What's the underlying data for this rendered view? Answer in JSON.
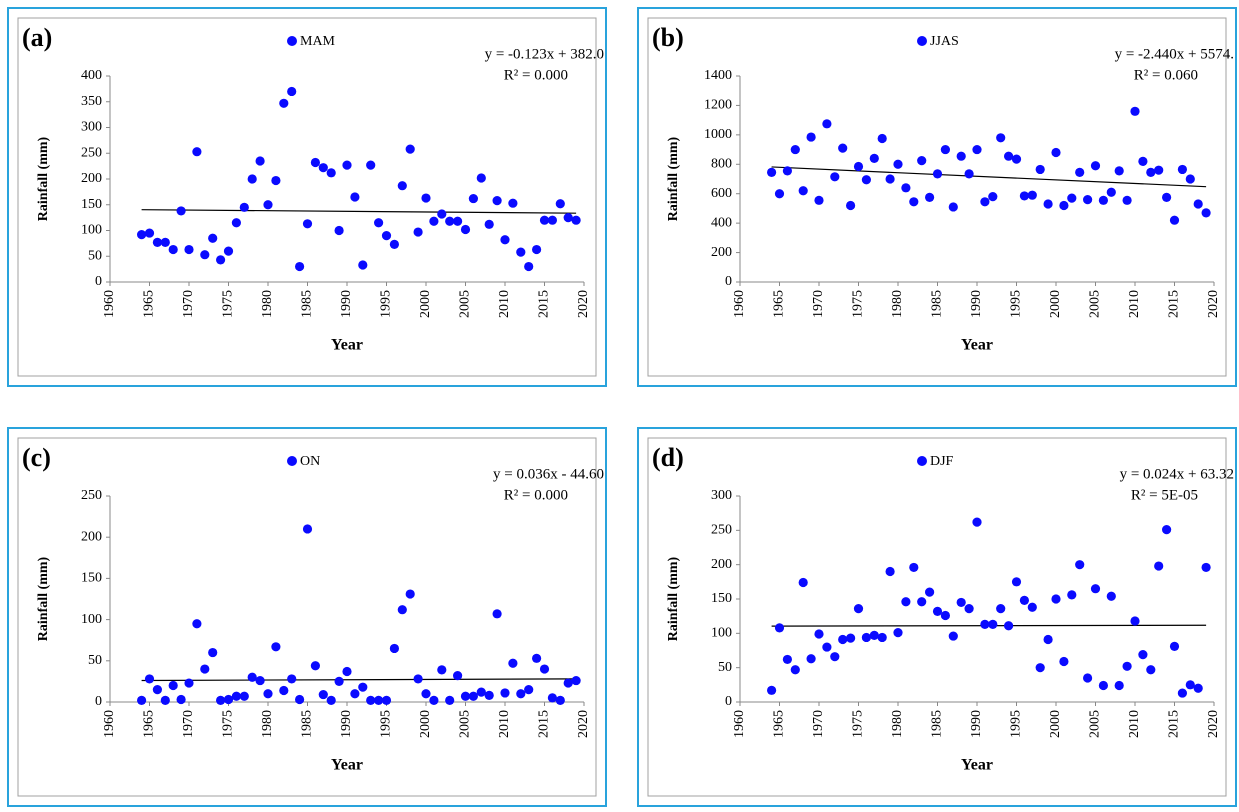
{
  "chart_data": [
    {
      "type": "scatter",
      "panel_label": "(a)",
      "x_label": "Year",
      "y_label": "Rainfall (mm)",
      "x": [
        1964,
        1965,
        1966,
        1967,
        1968,
        1969,
        1970,
        1971,
        1972,
        1973,
        1974,
        1975,
        1976,
        1977,
        1978,
        1979,
        1980,
        1981,
        1982,
        1983,
        1984,
        1985,
        1986,
        1987,
        1988,
        1989,
        1990,
        1991,
        1992,
        1993,
        1994,
        1995,
        1996,
        1997,
        1998,
        1999,
        2000,
        2001,
        2002,
        2003,
        2004,
        2005,
        2006,
        2007,
        2008,
        2009,
        2010,
        2011,
        2012,
        2013,
        2014,
        2015,
        2016,
        2017,
        2018,
        2019
      ],
      "series": [
        {
          "name": "MAM",
          "color": "#0a0aff",
          "values": [
            92,
            95,
            77,
            77,
            63,
            138,
            63,
            253,
            53,
            85,
            43,
            60,
            115,
            145,
            200,
            235,
            150,
            197,
            347,
            370,
            30,
            113,
            232,
            222,
            212,
            100,
            227,
            165,
            33,
            227,
            115,
            90,
            73,
            187,
            258,
            97,
            163,
            118,
            132,
            118,
            118,
            102,
            162,
            202,
            112,
            158,
            82,
            153,
            58,
            30,
            63,
            120,
            120,
            152,
            125,
            120
          ]
        }
      ],
      "xlim": [
        1960,
        2020
      ],
      "xticks": [
        1960,
        1965,
        1970,
        1975,
        1980,
        1985,
        1990,
        1995,
        2000,
        2005,
        2010,
        2015,
        2020
      ],
      "ylim": [
        0,
        400
      ],
      "yticks": [
        0,
        50,
        100,
        150,
        200,
        250,
        300,
        350,
        400
      ],
      "trend": {
        "slope": -0.123,
        "intercept": 382.0,
        "color": "#000000",
        "equation": "y = -0.123x + 382.0",
        "r2": "R² = 0.000"
      }
    },
    {
      "type": "scatter",
      "panel_label": "(b)",
      "x_label": "Year",
      "y_label": "Rainfall (mm)",
      "x": [
        1964,
        1965,
        1966,
        1967,
        1968,
        1969,
        1970,
        1971,
        1972,
        1973,
        1974,
        1975,
        1976,
        1977,
        1978,
        1979,
        1980,
        1981,
        1982,
        1983,
        1984,
        1985,
        1986,
        1987,
        1988,
        1989,
        1990,
        1991,
        1992,
        1993,
        1994,
        1995,
        1996,
        1997,
        1998,
        1999,
        2000,
        2001,
        2002,
        2003,
        2004,
        2005,
        2006,
        2007,
        2008,
        2009,
        2010,
        2011,
        2012,
        2013,
        2014,
        2015,
        2016,
        2017,
        2018,
        2019
      ],
      "series": [
        {
          "name": "JJAS",
          "color": "#0a0aff",
          "values": [
            745,
            600,
            755,
            900,
            620,
            985,
            555,
            1075,
            715,
            910,
            520,
            785,
            695,
            840,
            975,
            700,
            800,
            640,
            545,
            825,
            575,
            735,
            900,
            510,
            855,
            735,
            900,
            545,
            580,
            980,
            855,
            835,
            585,
            590,
            765,
            530,
            880,
            520,
            570,
            745,
            560,
            790,
            555,
            610,
            755,
            555,
            1160,
            820,
            745,
            760,
            575,
            420,
            765,
            700,
            530,
            470
          ]
        }
      ],
      "xlim": [
        1960,
        2020
      ],
      "xticks": [
        1960,
        1965,
        1970,
        1975,
        1980,
        1985,
        1990,
        1995,
        2000,
        2005,
        2010,
        2015,
        2020
      ],
      "ylim": [
        0,
        1400
      ],
      "yticks": [
        0,
        200,
        400,
        600,
        800,
        1000,
        1200,
        1400
      ],
      "trend": {
        "slope": -2.44,
        "intercept": 5574,
        "color": "#000000",
        "equation": "y = -2.440x + 5574.",
        "r2": "R² = 0.060"
      }
    },
    {
      "type": "scatter",
      "panel_label": "(c)",
      "x_label": "Year",
      "y_label": "Rainfall (mm)",
      "x": [
        1964,
        1965,
        1966,
        1967,
        1968,
        1969,
        1970,
        1971,
        1972,
        1973,
        1974,
        1975,
        1976,
        1977,
        1978,
        1979,
        1980,
        1981,
        1982,
        1983,
        1984,
        1985,
        1986,
        1987,
        1988,
        1989,
        1990,
        1991,
        1992,
        1993,
        1994,
        1995,
        1996,
        1997,
        1998,
        1999,
        2000,
        2001,
        2002,
        2003,
        2004,
        2005,
        2006,
        2007,
        2008,
        2009,
        2010,
        2011,
        2012,
        2013,
        2014,
        2015,
        2016,
        2017,
        2018,
        2019
      ],
      "series": [
        {
          "name": "ON",
          "color": "#0a0aff",
          "values": [
            2,
            28,
            15,
            2,
            20,
            3,
            23,
            95,
            40,
            60,
            2,
            3,
            7,
            7,
            30,
            26,
            10,
            67,
            14,
            28,
            3,
            210,
            44,
            9,
            2,
            25,
            37,
            10,
            18,
            2,
            2,
            2,
            65,
            112,
            131,
            28,
            10,
            2,
            39,
            2,
            32,
            7,
            7,
            12,
            8,
            107,
            11,
            47,
            10,
            15,
            53,
            40,
            5,
            2,
            23,
            26
          ]
        }
      ],
      "xlim": [
        1960,
        2020
      ],
      "xticks": [
        1960,
        1965,
        1970,
        1975,
        1980,
        1985,
        1990,
        1995,
        2000,
        2005,
        2010,
        2015,
        2020
      ],
      "ylim": [
        0,
        250
      ],
      "yticks": [
        0,
        50,
        100,
        150,
        200,
        250
      ],
      "trend": {
        "slope": 0.036,
        "intercept": -44.6,
        "color": "#000000",
        "equation": "y = 0.036x - 44.60",
        "r2": "R² = 0.000"
      }
    },
    {
      "type": "scatter",
      "panel_label": "(d)",
      "x_label": "Year",
      "y_label": "Rainfall (mm)",
      "x": [
        1964,
        1965,
        1966,
        1967,
        1968,
        1969,
        1970,
        1971,
        1972,
        1973,
        1974,
        1975,
        1976,
        1977,
        1978,
        1979,
        1980,
        1981,
        1982,
        1983,
        1984,
        1985,
        1986,
        1987,
        1988,
        1989,
        1990,
        1991,
        1992,
        1993,
        1994,
        1995,
        1996,
        1997,
        1998,
        1999,
        2000,
        2001,
        2002,
        2003,
        2004,
        2005,
        2006,
        2007,
        2008,
        2009,
        2010,
        2011,
        2012,
        2013,
        2014,
        2015,
        2016,
        2017,
        2018,
        2019
      ],
      "series": [
        {
          "name": "DJF",
          "color": "#0a0aff",
          "values": [
            17,
            108,
            62,
            47,
            174,
            63,
            99,
            80,
            66,
            91,
            93,
            136,
            94,
            97,
            94,
            190,
            101,
            146,
            196,
            146,
            160,
            132,
            126,
            96,
            145,
            136,
            262,
            113,
            113,
            136,
            111,
            175,
            148,
            138,
            50,
            91,
            150,
            59,
            156,
            200,
            35,
            165,
            24,
            154,
            24,
            52,
            118,
            69,
            47,
            198,
            251,
            81,
            13,
            25,
            20,
            196
          ]
        }
      ],
      "xlim": [
        1960,
        2020
      ],
      "xticks": [
        1960,
        1965,
        1970,
        1975,
        1980,
        1985,
        1990,
        1995,
        2000,
        2005,
        2010,
        2015,
        2020
      ],
      "ylim": [
        0,
        300
      ],
      "yticks": [
        0,
        50,
        100,
        150,
        200,
        250,
        300
      ],
      "trend": {
        "slope": 0.024,
        "intercept": 63.32,
        "color": "#000000",
        "equation": "y = 0.024x + 63.32",
        "r2": "R² = 5E-05"
      }
    }
  ]
}
